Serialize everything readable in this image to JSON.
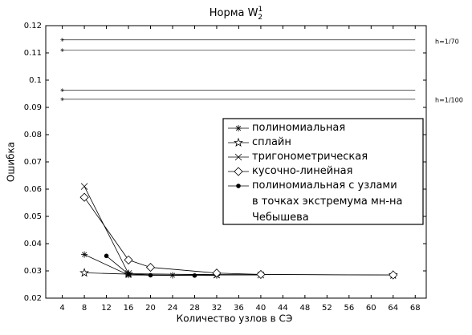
{
  "chart_data": {
    "type": "line",
    "title": "Норма W",
    "title_sup": "1",
    "title_sub": "2",
    "x_label": "Количество узлов в СЭ",
    "y_label": "Ошибка",
    "xlim": [
      1,
      70
    ],
    "xticks": [
      4,
      8,
      12,
      16,
      20,
      24,
      28,
      32,
      36,
      40,
      44,
      48,
      52,
      56,
      60,
      64,
      68
    ],
    "ylim": [
      0.02,
      0.12
    ],
    "yticks": [
      0.02,
      0.03,
      0.04,
      0.05,
      0.06,
      0.07,
      0.08,
      0.09,
      0.1,
      0.11,
      0.12
    ],
    "reference_lines": [
      {
        "y": 0.1148,
        "x": [
          4,
          68
        ]
      },
      {
        "y": 0.111,
        "x": [
          4,
          68
        ]
      },
      {
        "y": 0.0963,
        "x": [
          4,
          68
        ]
      },
      {
        "y": 0.093,
        "x": [
          4,
          68
        ]
      }
    ],
    "annotations": [
      "h=1/70",
      "h=1/100"
    ],
    "series": [
      {
        "name": "полиномиальная",
        "marker": "asterisk",
        "color": "#000000",
        "x": [
          8,
          16,
          24,
          32
        ],
        "values": [
          0.036,
          0.0285,
          0.0284,
          0.0283
        ]
      },
      {
        "name": "сплайн",
        "marker": "star",
        "color": "#000000",
        "x": [
          8,
          16,
          64
        ],
        "values": [
          0.0293,
          0.0288,
          0.0285
        ]
      },
      {
        "name": "тригонометрическая",
        "marker": "cross",
        "color": "#000000",
        "x": [
          8,
          16,
          32,
          40
        ],
        "values": [
          0.061,
          0.029,
          0.0285,
          0.0285
        ]
      },
      {
        "name": "кусочно-линейная",
        "marker": "diamond",
        "color": "#000000",
        "x": [
          8,
          16,
          20,
          32,
          40,
          64
        ],
        "values": [
          0.057,
          0.034,
          0.0313,
          0.0292,
          0.0287,
          0.0285
        ]
      },
      {
        "name": "полиномиальная с узлами\nв точках экстремума мн-на\nЧебышева",
        "marker": "dot",
        "color": "#000000",
        "x": [
          12,
          16,
          20,
          28
        ],
        "values": [
          0.0355,
          0.0288,
          0.0284,
          0.0283
        ]
      }
    ],
    "legend": "right"
  }
}
